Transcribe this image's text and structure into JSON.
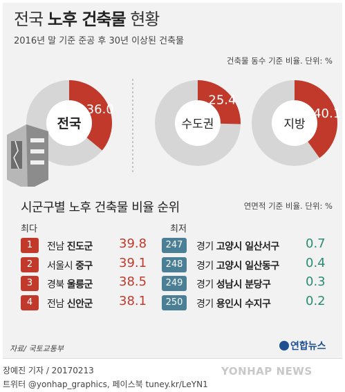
{
  "header": {
    "title_plain": "전국",
    "title_bold": "노후 건축물",
    "title_plain2": "현황",
    "subtitle": "2016년 말 기준 준공 후 30년 이상된 건축물",
    "unit_note": "건축물 동수 기준 비율. 단위: %"
  },
  "colors": {
    "red": "#c0392b",
    "grey": "#d6d6d6",
    "dark": "#4a4a4a",
    "teal": "#4a7f96",
    "green": "#2a8c74"
  },
  "chart_data": [
    {
      "type": "pie",
      "unit": "%",
      "slices": [
        {
          "label": "전국",
          "value": 36.0,
          "display": "36.0"
        },
        {
          "label": "수도권",
          "value": 25.4,
          "display": "25.4"
        },
        {
          "label": "지방",
          "value": 40.1,
          "display": "40.1"
        }
      ]
    },
    {
      "type": "table",
      "title": "시군구별 노후 건축물 비율 순위",
      "note": "연면적 기준 비율. 단위: %",
      "top_label": "최다",
      "bottom_label": "최저",
      "top": [
        {
          "rank": "1",
          "region": "전남",
          "name": "진도군",
          "value": "39.8"
        },
        {
          "rank": "2",
          "region": "서울시",
          "name": "중구",
          "value": "39.1"
        },
        {
          "rank": "3",
          "region": "경북",
          "name": "울릉군",
          "value": "38.5"
        },
        {
          "rank": "4",
          "region": "전남",
          "name": "신안군",
          "value": "38.1"
        }
      ],
      "bottom": [
        {
          "rank": "247",
          "region": "경기",
          "name": "고양시 일산서구",
          "value": "0.7"
        },
        {
          "rank": "248",
          "region": "경기",
          "name": "고양시 일산동구",
          "value": "0.4"
        },
        {
          "rank": "249",
          "region": "경기",
          "name": "성남시 분당구",
          "value": "0.3"
        },
        {
          "rank": "250",
          "region": "경기",
          "name": "용인시 수지구",
          "value": "0.2"
        }
      ]
    }
  ],
  "footer": {
    "source": "자료/ 국토교통부",
    "logo_text": "연합뉴스",
    "credit1": "장예진 기자 / 20170213",
    "credit2": "트위터 @yonhap_graphics, 페이스북 tuney.kr/LeYN1",
    "watermark": "YONHAP NEWS"
  }
}
